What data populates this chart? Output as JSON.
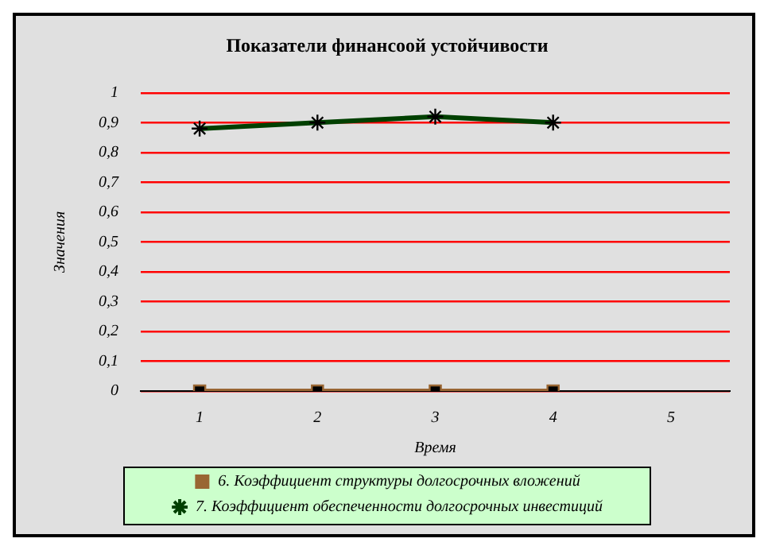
{
  "chart_data": {
    "type": "line",
    "title": "Показатели финансоой устойчивости",
    "xlabel": "Время",
    "ylabel": "Значения",
    "categories": [
      "1",
      "2",
      "3",
      "4",
      "5"
    ],
    "series": [
      {
        "name": "6. Коэффициент структуры долгосрочных вложений",
        "color": "#996633",
        "marker": "square",
        "values": [
          0,
          0,
          0,
          0,
          null
        ]
      },
      {
        "name": "7. Коэффициент обеспеченности долгосрочных инвестиций",
        "color": "#004000",
        "marker": "cross",
        "values": [
          0.88,
          0.9,
          0.92,
          0.9,
          null
        ]
      }
    ],
    "ylim": [
      0,
      1
    ],
    "yticks": [
      0,
      {
        "value": 0.1,
        "label": "0,1"
      },
      {
        "value": 0.2,
        "label": "0,2"
      },
      {
        "value": 0.3,
        "label": "0,3"
      },
      {
        "value": 0.4,
        "label": "0,4"
      },
      {
        "value": 0.5,
        "label": "0,5"
      },
      {
        "value": 0.6,
        "label": "0,6"
      },
      {
        "value": 0.7,
        "label": "0,7"
      },
      {
        "value": 0.8,
        "label": "0,8"
      },
      {
        "value": 0.9,
        "label": "0,9"
      },
      1
    ],
    "grid": "y",
    "legend": "bottom",
    "line_style": "solid"
  }
}
